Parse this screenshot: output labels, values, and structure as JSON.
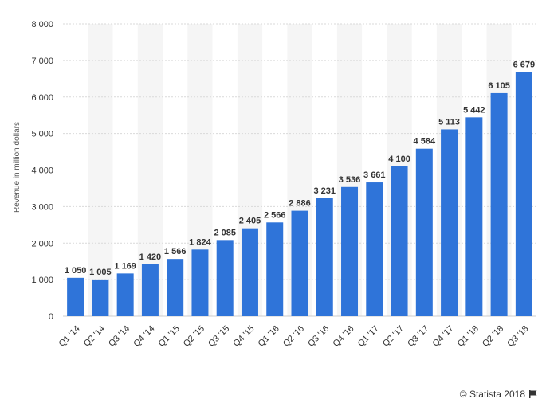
{
  "chart_data": {
    "type": "bar",
    "categories": [
      "Q1 '14",
      "Q2 '14",
      "Q3 '14",
      "Q4 '14",
      "Q1 '15",
      "Q2 '15",
      "Q3 '15",
      "Q4 '15",
      "Q1 '16",
      "Q2 '16",
      "Q3 '16",
      "Q4 '16",
      "Q1 '17",
      "Q2 '17",
      "Q3 '17",
      "Q4 '17",
      "Q1 '18",
      "Q2 '18",
      "Q3 '18"
    ],
    "values": [
      1050,
      1005,
      1169,
      1420,
      1566,
      1824,
      2085,
      2405,
      2566,
      2886,
      3231,
      3536,
      3661,
      4100,
      4584,
      5113,
      5442,
      6105,
      6679
    ],
    "value_labels": [
      "1 050",
      "1 005",
      "1 169",
      "1 420",
      "1 566",
      "1 824",
      "2 085",
      "2 405",
      "2 566",
      "2 886",
      "3 231",
      "3 536",
      "3 661",
      "4 100",
      "4 584",
      "5 113",
      "5 442",
      "6 105",
      "6 679"
    ],
    "ylabel": "Revenue in million dollars",
    "ylim": [
      0,
      8000
    ],
    "yticks": [
      0,
      1000,
      2000,
      3000,
      4000,
      5000,
      6000,
      7000,
      8000
    ],
    "ytick_labels": [
      "0",
      "1 000",
      "2 000",
      "3 000",
      "4 000",
      "5 000",
      "6 000",
      "7 000",
      "8 000"
    ],
    "grid": true,
    "bar_color": "#2f74d9"
  },
  "footer": {
    "credit": "© Statista 2018"
  },
  "icons": {
    "credit_icon": "flag-icon"
  }
}
